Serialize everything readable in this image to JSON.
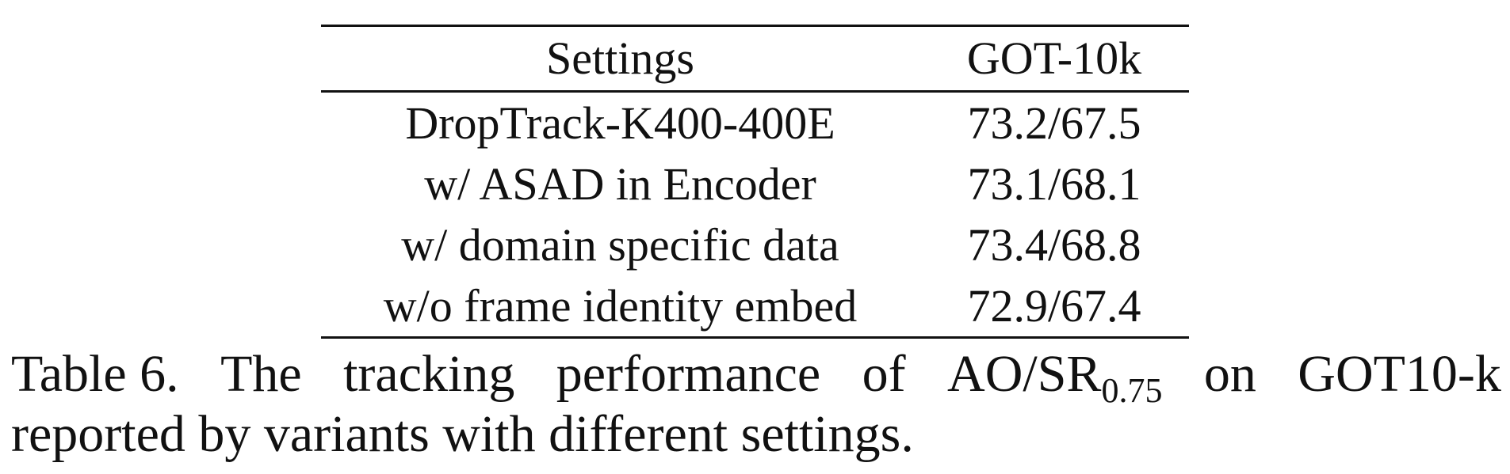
{
  "table": {
    "headers": [
      "Settings",
      "GOT-10k"
    ],
    "rows": [
      {
        "setting": "DropTrack-K400-400E",
        "got10k": "73.2/67.5"
      },
      {
        "setting": "w/ ASAD in Encoder",
        "got10k": "73.1/68.1"
      },
      {
        "setting": "w/ domain specific data",
        "got10k": "73.4/68.8"
      },
      {
        "setting": "w/o frame identity embed",
        "got10k": "72.9/67.4"
      }
    ]
  },
  "caption": {
    "label": "Table 6.",
    "line1_words": [
      "The",
      "tracking",
      "performance",
      "of"
    ],
    "metric": "AO/SR",
    "metric_subscript": "0.75",
    "line1_tail": [
      "on",
      "GOT10-k"
    ],
    "line2": "reported by variants with different settings."
  }
}
